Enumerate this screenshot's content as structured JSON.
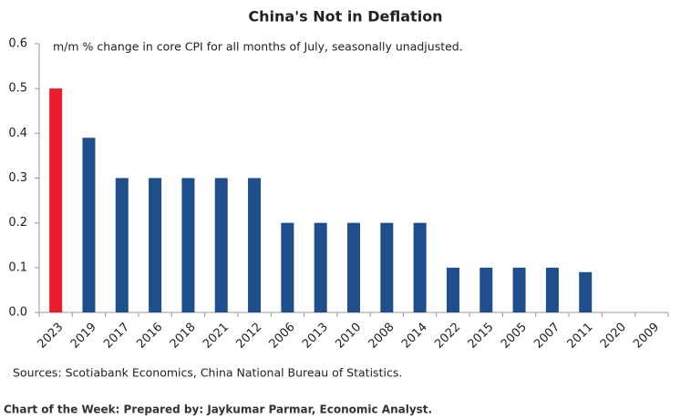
{
  "chart_data": {
    "type": "bar",
    "title": "China's Not in Deflation",
    "subtitle": "m/m % change in core CPI for all months of July, seasonally unadjusted.",
    "source": "Sources: Scotiabank Economics, China National Bureau of Statistics.",
    "footer": "Chart of the Week: Prepared by: Jaykumar Parmar, Economic Analyst.",
    "categories": [
      "2023",
      "2019",
      "2017",
      "2016",
      "2018",
      "2021",
      "2012",
      "2006",
      "2013",
      "2010",
      "2008",
      "2014",
      "2022",
      "2015",
      "2005",
      "2007",
      "2011",
      "2020",
      "2009"
    ],
    "values": [
      0.5,
      0.39,
      0.3,
      0.3,
      0.3,
      0.3,
      0.3,
      0.2,
      0.2,
      0.2,
      0.2,
      0.2,
      0.1,
      0.1,
      0.1,
      0.1,
      0.09,
      0,
      0
    ],
    "colors": [
      "#ec1c2e",
      "#1f4e8c",
      "#1f4e8c",
      "#1f4e8c",
      "#1f4e8c",
      "#1f4e8c",
      "#1f4e8c",
      "#1f4e8c",
      "#1f4e8c",
      "#1f4e8c",
      "#1f4e8c",
      "#1f4e8c",
      "#1f4e8c",
      "#1f4e8c",
      "#1f4e8c",
      "#1f4e8c",
      "#1f4e8c",
      "#1f4e8c",
      "#1f4e8c"
    ],
    "ylim": [
      0,
      0.6
    ],
    "yticks": [
      {
        "value": 0,
        "label": "0.0"
      },
      0.1,
      0.2,
      0.3,
      0.4,
      0.5,
      0.6
    ],
    "grid": false
  }
}
